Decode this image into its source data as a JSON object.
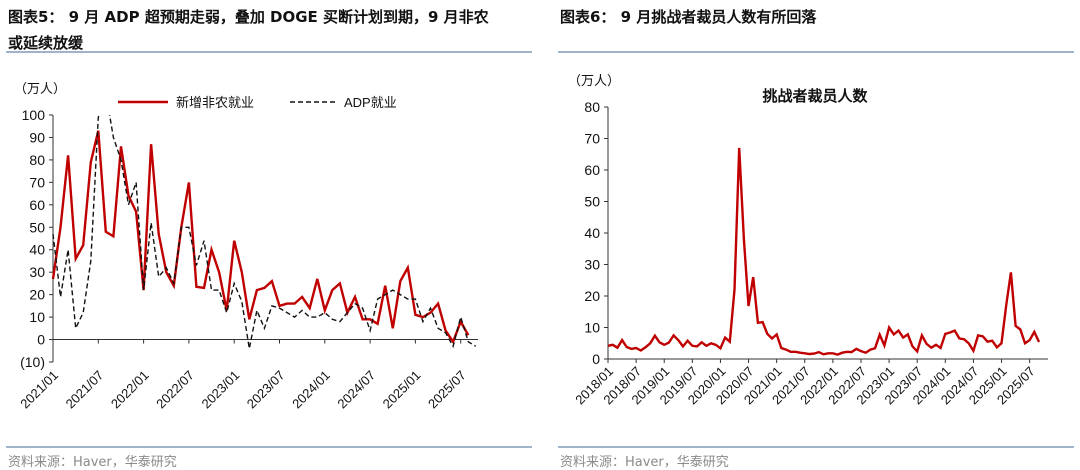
{
  "left_panel": {
    "title": "图表5： 9 月 ADP 超预期走弱，叠加 DOGE 买断计划到期，9 月非农或延续放缓",
    "title_line1": "图表5： 9 月 ADP 超预期走弱，叠加 DOGE 买断计划到期，9 月非农",
    "title_line2": "或延续放缓",
    "source": "资料来源：Haver，华泰研究"
  },
  "right_panel": {
    "title": "图表6： 9 月挑战者裁员人数有所回落",
    "source": "资料来源：Haver，华泰研究"
  },
  "colors": {
    "red": "#c00000",
    "black": "#111111",
    "rule": "#9fb4c8"
  },
  "chart_data": [
    {
      "type": "line",
      "title": "",
      "ylabel": "（万人）",
      "ylim": [
        -10,
        100
      ],
      "yticks": [
        -10,
        0,
        10,
        20,
        30,
        40,
        50,
        60,
        70,
        80,
        90,
        100
      ],
      "ytick_labels": [
        "(10)",
        "0",
        "10",
        "20",
        "30",
        "40",
        "50",
        "60",
        "70",
        "80",
        "90",
        "100"
      ],
      "x_start": "2021/01",
      "xtick_labels": [
        "2021/01",
        "2021/07",
        "2022/01",
        "2022/07",
        "2023/01",
        "2023/07",
        "2024/01",
        "2024/07",
        "2025/01",
        "2025/07"
      ],
      "legend": "top",
      "series": [
        {
          "name": "新增非农就业",
          "style": "solid",
          "color": "#c00000",
          "values": [
            27,
            50,
            82,
            36,
            42,
            79,
            93,
            48,
            46,
            86,
            64,
            57,
            22,
            87,
            47,
            30,
            24,
            50,
            70,
            23.5,
            23,
            40,
            30,
            13,
            44,
            30,
            9,
            22,
            23,
            26,
            15,
            16,
            16,
            19,
            14,
            27,
            13,
            22,
            25,
            12,
            19,
            9,
            9,
            7,
            24,
            5,
            26,
            32,
            11,
            10,
            12,
            16,
            4,
            -1,
            8,
            2
          ]
        },
        {
          "name": "ADP就业",
          "style": "dashed",
          "color": "#111111",
          "values": [
            47,
            19,
            40,
            5,
            12,
            35,
            99,
            110,
            90,
            80,
            60,
            70,
            22,
            52,
            28,
            32,
            25,
            50,
            50,
            33,
            44,
            22,
            22,
            12,
            25,
            17,
            -4,
            13,
            5,
            15,
            14,
            12,
            10,
            13,
            10,
            10,
            12,
            9,
            8,
            12,
            16,
            14,
            4,
            18,
            20,
            22,
            20,
            18,
            18,
            8,
            14,
            5,
            3,
            -3,
            10,
            -1,
            -3
          ]
        }
      ]
    },
    {
      "type": "line",
      "title": "挑战者裁员人数",
      "ylabel": "（万人）",
      "ylim": [
        0,
        80
      ],
      "yticks": [
        0,
        10,
        20,
        30,
        40,
        50,
        60,
        70,
        80
      ],
      "ytick_labels": [
        "0",
        "10",
        "20",
        "30",
        "40",
        "50",
        "60",
        "70",
        "80"
      ],
      "x_start": "2018/01",
      "xtick_labels": [
        "2018/01",
        "2018/07",
        "2019/01",
        "2019/07",
        "2020/01",
        "2020/07",
        "2021/01",
        "2021/07",
        "2022/01",
        "2022/07",
        "2023/01",
        "2023/07",
        "2024/01",
        "2024/07",
        "2025/01",
        "2025/07"
      ],
      "series": [
        {
          "name": "挑战者裁员人数",
          "style": "solid",
          "color": "#c00000",
          "values": [
            4.2,
            4.5,
            3.6,
            6,
            3.8,
            3.2,
            3.5,
            2.7,
            3.7,
            5,
            7.4,
            5.3,
            4.5,
            5.2,
            7.5,
            6,
            4,
            5.8,
            4.2,
            4,
            5.3,
            4.2,
            5,
            4.5,
            3.4,
            6.8,
            5.5,
            22,
            67,
            38,
            16.8,
            26,
            11.5,
            11.7,
            8,
            6.5,
            7.8,
            3.5,
            3,
            2.3,
            2.3,
            2,
            1.8,
            1.6,
            1.7,
            2.2,
            1.5,
            1.8,
            1.8,
            1.4,
            2,
            2.3,
            2.2,
            3.2,
            2.5,
            2,
            3,
            3.4,
            7.7,
            4.3,
            10,
            7.8,
            9,
            6.8,
            7.8,
            4,
            2.4,
            7.5,
            4.8,
            3.6,
            4.5,
            3.5,
            8,
            8.4,
            9,
            6.5,
            6.3,
            5,
            2.6,
            7.5,
            7.2,
            5.5,
            5.8,
            3.7,
            5,
            17,
            27.5,
            10.5,
            9.4,
            5,
            6,
            8.6,
            5.4
          ]
        }
      ]
    }
  ]
}
